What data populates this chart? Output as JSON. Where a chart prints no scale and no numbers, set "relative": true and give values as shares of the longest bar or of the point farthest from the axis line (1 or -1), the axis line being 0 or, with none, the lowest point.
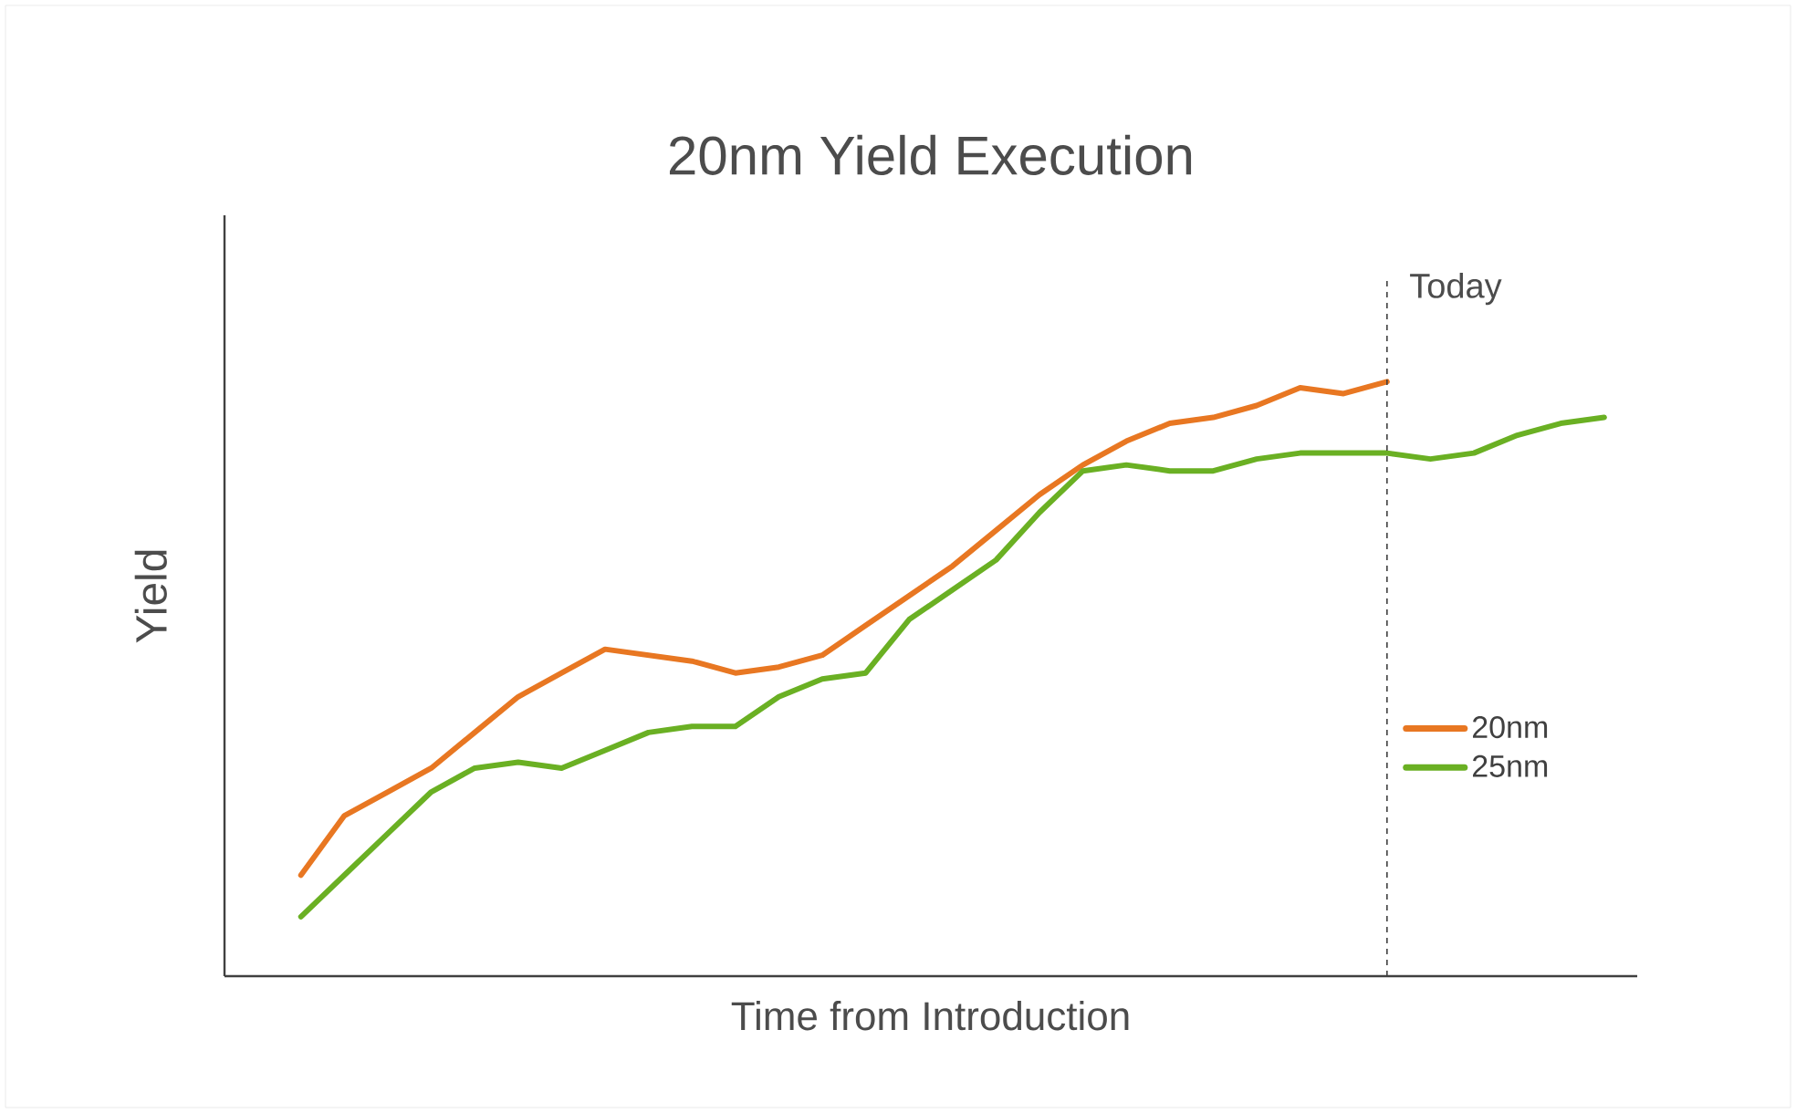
{
  "chart_data": {
    "type": "line",
    "title": "20nm Yield Execution",
    "xlabel": "Time from Introduction",
    "ylabel": "Yield",
    "relative": true,
    "legend": "right",
    "marker": "none",
    "line_style": "solid",
    "categories": [
      null,
      null,
      null,
      null,
      null,
      null,
      null,
      null,
      null,
      null,
      null,
      null,
      null,
      null,
      null,
      null,
      null,
      null,
      null,
      null,
      null,
      null,
      null,
      null,
      null,
      null,
      null,
      null,
      null,
      null,
      null
    ],
    "series": [
      {
        "name": "20nm",
        "color": "#e87722",
        "values": [
          0.17,
          0.27,
          0.31,
          0.35,
          0.41,
          0.47,
          0.51,
          0.55,
          0.54,
          0.53,
          0.51,
          0.52,
          0.54,
          0.59,
          0.64,
          0.69,
          0.75,
          0.81,
          0.86,
          0.9,
          0.93,
          0.94,
          0.96,
          0.99,
          0.98,
          1,
          null,
          null,
          null,
          null,
          null
        ]
      },
      {
        "name": "25nm",
        "color": "#6ab023",
        "values": [
          0.1,
          0.17,
          0.24,
          0.31,
          0.35,
          0.36,
          0.35,
          0.38,
          0.41,
          0.42,
          0.42,
          0.47,
          0.5,
          0.51,
          0.6,
          0.65,
          0.7,
          0.78,
          0.85,
          0.86,
          0.85,
          0.85,
          0.87,
          0.88,
          0.88,
          0.88,
          0.87,
          0.88,
          0.91,
          0.93,
          0.94
        ]
      }
    ],
    "annotations": [
      "Today"
    ]
  }
}
